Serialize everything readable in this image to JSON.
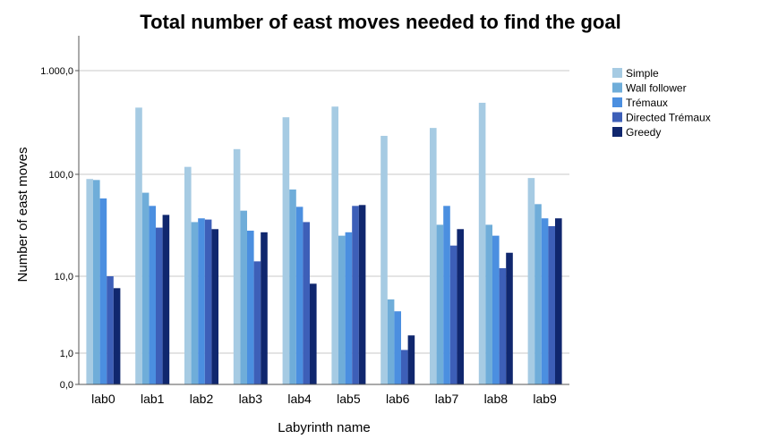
{
  "chart_data": {
    "type": "bar",
    "title": "Total number of east moves needed to find the goal",
    "xlabel": "Labyrinth name",
    "ylabel": "Number of east moves",
    "yscale": "log",
    "yticks": [
      "0,0",
      "1,0",
      "10,0",
      "100,0",
      "1.000,0"
    ],
    "categories": [
      "lab0",
      "lab1",
      "lab2",
      "lab3",
      "lab4",
      "lab5",
      "lab6",
      "lab7",
      "lab8",
      "lab9"
    ],
    "series": [
      {
        "name": "Simple",
        "color": "#a6cbe3",
        "values": [
          90,
          440,
          118,
          175,
          355,
          450,
          235,
          280,
          490,
          92
        ]
      },
      {
        "name": "Wall follower",
        "color": "#6fadd9",
        "values": [
          88,
          66,
          34,
          44,
          71,
          25,
          5,
          32,
          32,
          51
        ]
      },
      {
        "name": "Trémaux",
        "color": "#4b8fe0",
        "values": [
          58,
          49,
          37,
          28,
          48,
          27,
          3.5,
          49,
          25,
          37
        ]
      },
      {
        "name": "Directed Trémaux",
        "color": "#3d5fb8",
        "values": [
          10,
          30,
          36,
          14,
          34,
          49,
          1.1,
          20,
          12,
          31
        ]
      },
      {
        "name": "Greedy",
        "color": "#10276e",
        "values": [
          7,
          40,
          29,
          27,
          8,
          50,
          1.7,
          29,
          17,
          37
        ]
      }
    ],
    "legend_position": "right",
    "grid": true
  }
}
